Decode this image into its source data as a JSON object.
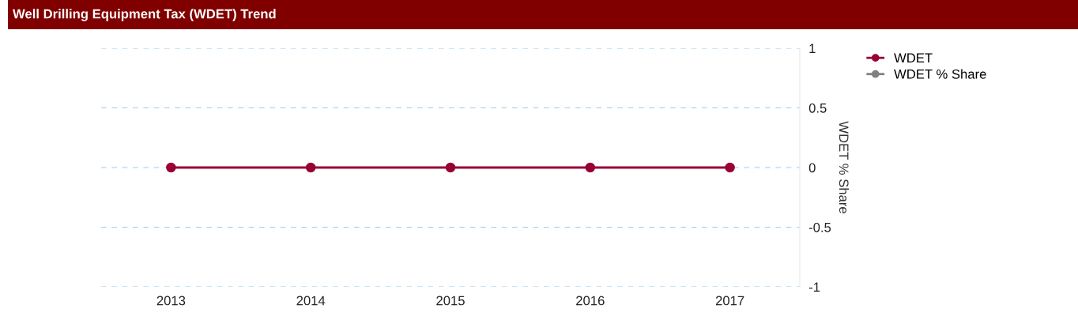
{
  "chart_data": {
    "type": "line",
    "title": "Well Drilling Equipment Tax (WDET) Trend",
    "categories": [
      "2013",
      "2014",
      "2015",
      "2016",
      "2017"
    ],
    "series": [
      {
        "name": "WDET",
        "color": "#990033",
        "values": [
          0,
          0,
          0,
          0,
          0
        ]
      },
      {
        "name": "WDET % Share",
        "color": "#808080",
        "values": [
          null,
          null,
          null,
          null,
          null
        ]
      }
    ],
    "ylabel": "WDET % Share",
    "ylim": [
      -1,
      1
    ],
    "yticks": [
      -1,
      -0.5,
      0,
      0.5,
      1
    ],
    "grid": "y",
    "legend": "top right",
    "marker": "circle",
    "line_style": "solid"
  }
}
